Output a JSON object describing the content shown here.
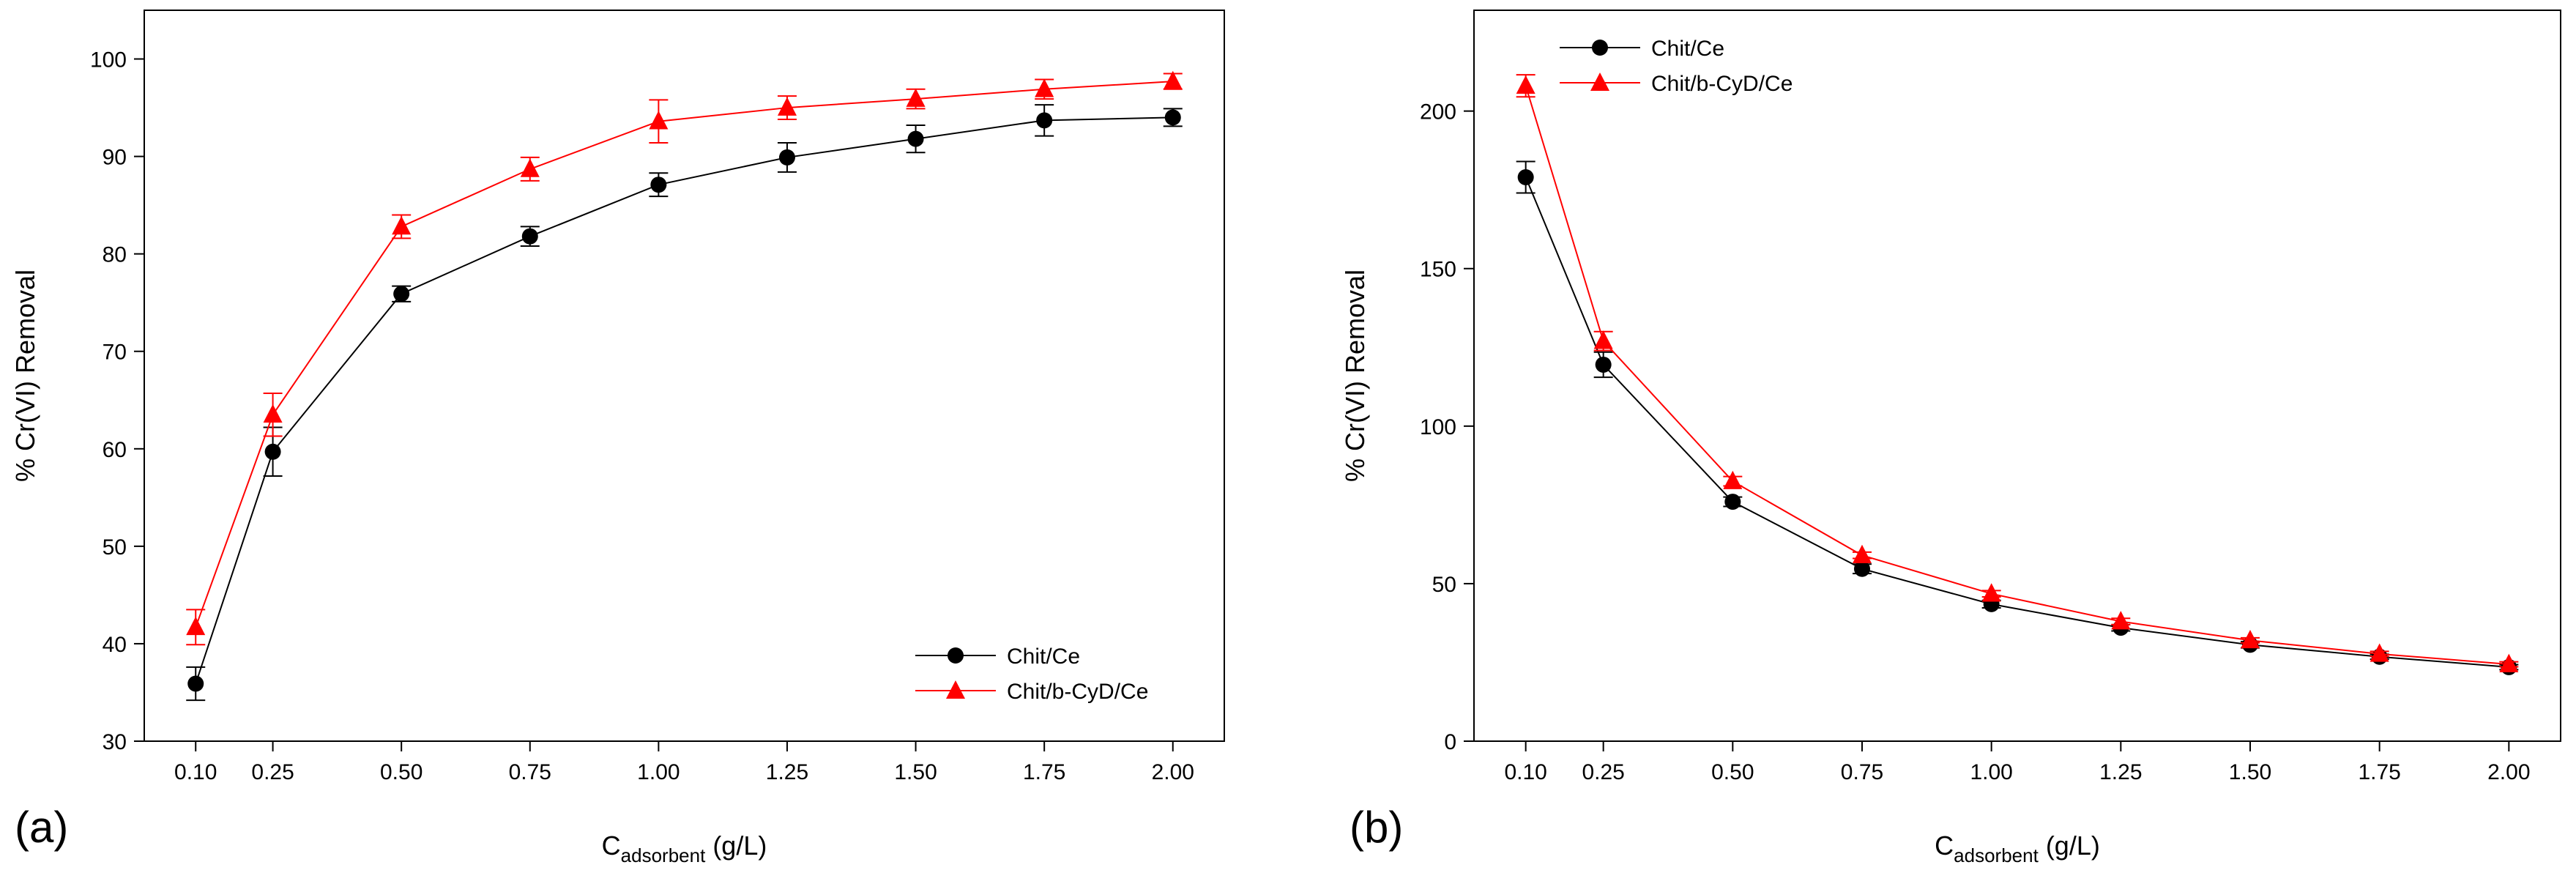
{
  "chart_data": [
    {
      "type": "line",
      "panel_label": "(a)",
      "xlabel": "C",
      "xlabel_sub": "adsorbent",
      "xlabel_suffix": " (g/L)",
      "ylabel": "% Cr(VI) Removal",
      "x": [
        0.1,
        0.25,
        0.5,
        0.75,
        1.0,
        1.25,
        1.5,
        1.75,
        2.0
      ],
      "xticks": [
        "0.10",
        "0.25",
        "0.50",
        "0.75",
        "1.00",
        "1.25",
        "1.50",
        "1.75",
        "2.00"
      ],
      "xlim": [
        0.0,
        2.1
      ],
      "ylim": [
        30,
        105
      ],
      "yticks": [
        30,
        40,
        50,
        60,
        70,
        80,
        90,
        100
      ],
      "grid": false,
      "legend_position": "bottom-right",
      "series": [
        {
          "name": "Chit/Ce",
          "marker": "circle",
          "color": "#000000",
          "values": [
            35.9,
            59.7,
            75.9,
            81.8,
            87.1,
            89.9,
            91.8,
            93.7,
            94.0
          ],
          "errors": [
            1.7,
            2.5,
            0.8,
            1.0,
            1.2,
            1.5,
            1.4,
            1.6,
            0.9
          ]
        },
        {
          "name": "Chit/b-CyD/Ce",
          "marker": "triangle",
          "color": "#ff0000",
          "values": [
            41.7,
            63.5,
            82.8,
            88.7,
            93.6,
            95.0,
            95.9,
            96.9,
            97.7
          ],
          "errors": [
            1.8,
            2.2,
            1.2,
            1.2,
            2.2,
            1.2,
            1.0,
            1.0,
            0.8
          ]
        }
      ]
    },
    {
      "type": "line",
      "panel_label": "(b)",
      "xlabel": "C",
      "xlabel_sub": "adsorbent",
      "xlabel_suffix": " (g/L)",
      "ylabel": "% Cr(VI) Removal",
      "x": [
        0.1,
        0.25,
        0.5,
        0.75,
        1.0,
        1.25,
        1.5,
        1.75,
        2.0
      ],
      "xticks": [
        "0.10",
        "0.25",
        "0.50",
        "0.75",
        "1.00",
        "1.25",
        "1.50",
        "1.75",
        "2.00"
      ],
      "xlim": [
        0.0,
        2.1
      ],
      "ylim": [
        0,
        232
      ],
      "yticks": [
        0,
        50,
        100,
        150,
        200
      ],
      "grid": false,
      "legend_position": "top-left",
      "series": [
        {
          "name": "Chit/Ce",
          "marker": "circle",
          "color": "#000000",
          "values": [
            179,
            119.5,
            76.0,
            54.7,
            43.5,
            36.0,
            30.6,
            26.8,
            23.5
          ],
          "errors": [
            5,
            4,
            1.5,
            1.5,
            1.2,
            1.0,
            1.0,
            0.8,
            0.8
          ]
        },
        {
          "name": "Chit/b-CyD/Ce",
          "marker": "triangle",
          "color": "#ff0000",
          "values": [
            208,
            127,
            82.5,
            59.0,
            46.8,
            38.0,
            32.0,
            27.7,
            24.4
          ],
          "errors": [
            3.5,
            3,
            1.5,
            1.0,
            1.0,
            1.0,
            0.8,
            0.8,
            0.8
          ]
        }
      ]
    }
  ]
}
